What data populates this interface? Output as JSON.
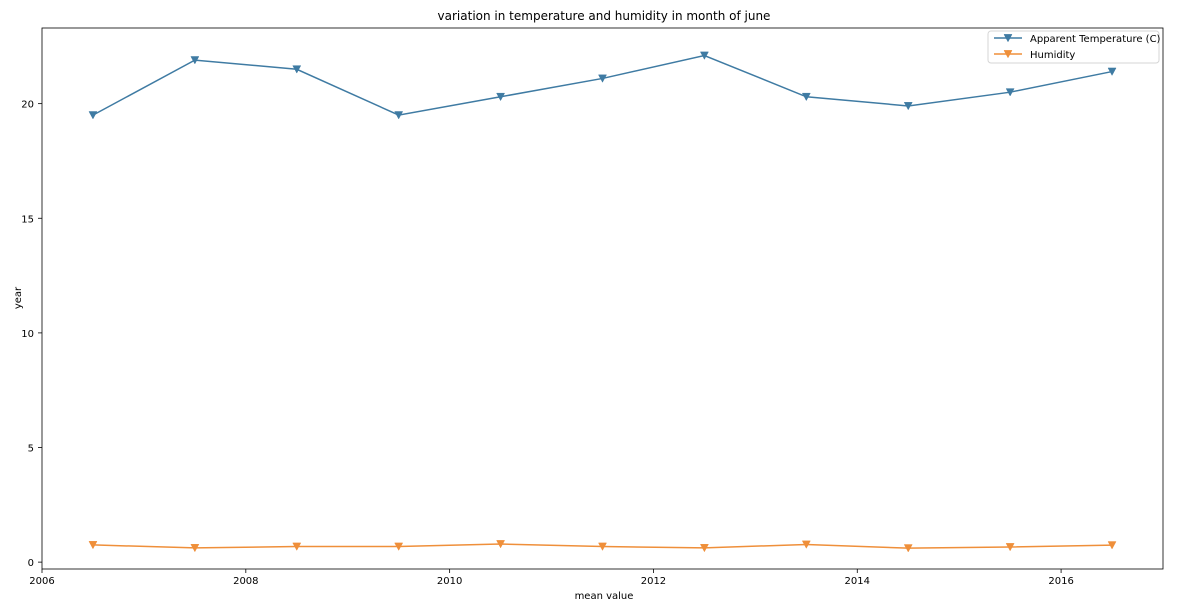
{
  "chart_data": {
    "type": "line",
    "title": "variation in temperature and humidity in month of june",
    "xlabel": "mean value",
    "ylabel": "year",
    "xlim": [
      2006,
      2017
    ],
    "ylim": [
      -0.3,
      23.3
    ],
    "xticks": [
      2006,
      2008,
      2010,
      2012,
      2014,
      2016
    ],
    "yticks": [
      0,
      5,
      10,
      15,
      20
    ],
    "grid": false,
    "legend_position": "top-right",
    "marker": "triangle-down",
    "x": [
      2006.5,
      2007.5,
      2008.5,
      2009.5,
      2010.5,
      2011.5,
      2012.5,
      2013.5,
      2014.5,
      2015.5,
      2016.5
    ],
    "series": [
      {
        "name": "Apparent Temperature (C)",
        "color": "#3f7ba3",
        "values": [
          19.5,
          21.9,
          21.5,
          19.5,
          20.3,
          21.1,
          22.1,
          20.3,
          19.9,
          20.5,
          21.4
        ]
      },
      {
        "name": "Humidity",
        "color": "#ef8f3a",
        "values": [
          0.75,
          0.62,
          0.68,
          0.68,
          0.79,
          0.68,
          0.62,
          0.77,
          0.61,
          0.66,
          0.74
        ]
      }
    ]
  }
}
